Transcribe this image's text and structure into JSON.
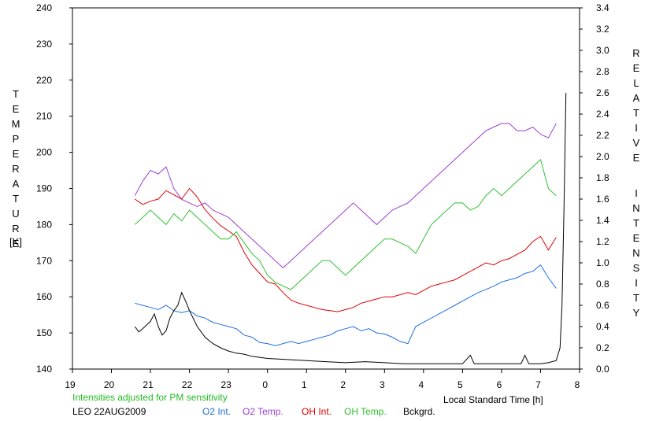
{
  "chart_data": {
    "type": "line",
    "left_axis": {
      "title_letters": "TEMPERATURE",
      "units": "[K]",
      "ylim": [
        140,
        240
      ],
      "ticks": [
        "140",
        "150",
        "160",
        "170",
        "180",
        "190",
        "200",
        "210",
        "220",
        "230",
        "240"
      ]
    },
    "right_axis": {
      "title_word1": "RELATIVE",
      "title_word2": "INTENSITY",
      "ylim": [
        0.0,
        3.4
      ],
      "ticks": [
        "0.0",
        "0.2",
        "0.4",
        "0.6",
        "0.8",
        "1.0",
        "1.2",
        "1.4",
        "1.6",
        "1.8",
        "2.0",
        "2.2",
        "2.4",
        "2.6",
        "2.8",
        "3.0",
        "3.2",
        "3.4"
      ]
    },
    "x_axis": {
      "label": "Local Standard Time [h]",
      "ticks": [
        "19",
        "20",
        "21",
        "22",
        "23",
        "0",
        "1",
        "2",
        "3",
        "4",
        "5",
        "6",
        "7",
        "8"
      ]
    },
    "note": "Intensities adjusted for PM sensitivity",
    "station": "LEO 22AUG2009",
    "colors": {
      "o2_int": "#1f6fe0",
      "o2_temp": "#9b3fd6",
      "oh_int": "#e00000",
      "oh_temp": "#2fbf2f",
      "bckgrd": "#000000",
      "note": "#22bb22"
    },
    "series": [
      {
        "name": "O2 Int.",
        "axis": "right",
        "color": "#1f6fe0",
        "x": [
          20.6,
          20.8,
          21.0,
          21.2,
          21.4,
          21.6,
          21.8,
          22.0,
          22.2,
          22.4,
          22.6,
          22.8,
          23.0,
          23.2,
          23.4,
          23.6,
          23.8,
          24.0,
          24.2,
          24.4,
          24.6,
          24.8,
          25.0,
          25.2,
          25.4,
          25.6,
          25.8,
          26.0,
          26.2,
          26.4,
          26.6,
          26.8,
          27.0,
          27.2,
          27.4,
          27.6,
          27.8,
          28.0,
          28.2,
          28.4,
          28.6,
          28.8,
          29.0,
          29.2,
          29.4,
          29.6,
          29.8,
          30.0,
          30.2,
          30.4,
          30.6,
          30.8,
          31.0,
          31.2,
          31.4
        ],
        "values": [
          0.62,
          0.6,
          0.58,
          0.56,
          0.6,
          0.55,
          0.53,
          0.55,
          0.5,
          0.48,
          0.44,
          0.42,
          0.4,
          0.38,
          0.32,
          0.3,
          0.25,
          0.24,
          0.22,
          0.24,
          0.26,
          0.24,
          0.26,
          0.28,
          0.3,
          0.32,
          0.36,
          0.38,
          0.4,
          0.36,
          0.38,
          0.34,
          0.33,
          0.3,
          0.26,
          0.24,
          0.4,
          0.44,
          0.48,
          0.52,
          0.56,
          0.6,
          0.64,
          0.68,
          0.72,
          0.75,
          0.78,
          0.82,
          0.84,
          0.86,
          0.9,
          0.92,
          0.98,
          0.86,
          0.76
        ]
      },
      {
        "name": "O2 Temp.",
        "axis": "left",
        "color": "#9b3fd6",
        "x": [
          20.6,
          20.8,
          21.0,
          21.2,
          21.4,
          21.6,
          21.8,
          22.0,
          22.2,
          22.4,
          22.6,
          22.8,
          23.0,
          23.2,
          23.4,
          23.6,
          23.8,
          24.0,
          24.2,
          24.4,
          24.6,
          24.8,
          25.0,
          25.2,
          25.4,
          25.6,
          25.8,
          26.0,
          26.2,
          26.4,
          26.6,
          26.8,
          27.0,
          27.2,
          27.4,
          27.6,
          27.8,
          28.0,
          28.2,
          28.4,
          28.6,
          28.8,
          29.0,
          29.2,
          29.4,
          29.6,
          29.8,
          30.0,
          30.2,
          30.4,
          30.6,
          30.8,
          31.0,
          31.2,
          31.4
        ],
        "values": [
          188,
          192,
          195,
          194,
          196,
          190,
          187,
          186,
          185,
          186,
          184,
          183,
          182,
          180,
          178,
          176,
          174,
          172,
          170,
          168,
          170,
          172,
          174,
          176,
          178,
          180,
          182,
          184,
          186,
          184,
          182,
          180,
          182,
          184,
          185,
          186,
          188,
          190,
          192,
          194,
          196,
          198,
          200,
          202,
          204,
          206,
          207,
          208,
          208,
          206,
          206,
          207,
          205,
          204,
          208
        ]
      },
      {
        "name": "OH Int.",
        "axis": "right",
        "color": "#e00000",
        "x": [
          20.6,
          20.8,
          21.0,
          21.2,
          21.4,
          21.6,
          21.8,
          22.0,
          22.2,
          22.4,
          22.6,
          22.8,
          23.0,
          23.2,
          23.4,
          23.6,
          23.8,
          24.0,
          24.2,
          24.4,
          24.6,
          24.8,
          25.0,
          25.2,
          25.4,
          25.6,
          25.8,
          26.0,
          26.2,
          26.4,
          26.6,
          26.8,
          27.0,
          27.2,
          27.4,
          27.6,
          27.8,
          28.0,
          28.2,
          28.4,
          28.6,
          28.8,
          29.0,
          29.2,
          29.4,
          29.6,
          29.8,
          30.0,
          30.2,
          30.4,
          30.6,
          30.8,
          31.0,
          31.2,
          31.4
        ],
        "values": [
          1.6,
          1.55,
          1.58,
          1.6,
          1.68,
          1.64,
          1.6,
          1.7,
          1.62,
          1.5,
          1.42,
          1.35,
          1.3,
          1.25,
          1.1,
          0.98,
          0.9,
          0.82,
          0.8,
          0.72,
          0.65,
          0.62,
          0.6,
          0.58,
          0.56,
          0.55,
          0.54,
          0.56,
          0.58,
          0.62,
          0.64,
          0.66,
          0.68,
          0.68,
          0.7,
          0.72,
          0.7,
          0.74,
          0.78,
          0.8,
          0.82,
          0.84,
          0.88,
          0.92,
          0.96,
          1.0,
          0.98,
          1.02,
          1.04,
          1.08,
          1.12,
          1.2,
          1.25,
          1.12,
          1.24
        ]
      },
      {
        "name": "OH Temp.",
        "axis": "left",
        "color": "#2fbf2f",
        "x": [
          20.6,
          20.8,
          21.0,
          21.2,
          21.4,
          21.6,
          21.8,
          22.0,
          22.2,
          22.4,
          22.6,
          22.8,
          23.0,
          23.2,
          23.4,
          23.6,
          23.8,
          24.0,
          24.2,
          24.4,
          24.6,
          24.8,
          25.0,
          25.2,
          25.4,
          25.6,
          25.8,
          26.0,
          26.2,
          26.4,
          26.6,
          26.8,
          27.0,
          27.2,
          27.4,
          27.6,
          27.8,
          28.0,
          28.2,
          28.4,
          28.6,
          28.8,
          29.0,
          29.2,
          29.4,
          29.6,
          29.8,
          30.0,
          30.2,
          30.4,
          30.6,
          30.8,
          31.0,
          31.2,
          31.4
        ],
        "values": [
          180,
          182,
          184,
          182,
          180,
          183,
          181,
          184,
          182,
          180,
          178,
          176,
          176,
          178,
          175,
          172,
          170,
          166,
          164,
          163,
          162,
          164,
          166,
          168,
          170,
          170,
          168,
          166,
          168,
          170,
          172,
          174,
          176,
          176,
          175,
          174,
          172,
          176,
          180,
          182,
          184,
          186,
          186,
          184,
          185,
          188,
          190,
          188,
          190,
          192,
          194,
          196,
          198,
          190,
          188
        ]
      },
      {
        "name": "Bckgrd.",
        "axis": "right",
        "color": "#000000",
        "x": [
          20.6,
          20.7,
          20.8,
          21.0,
          21.1,
          21.2,
          21.3,
          21.4,
          21.5,
          21.6,
          21.7,
          21.8,
          21.9,
          22.0,
          22.2,
          22.4,
          22.6,
          22.8,
          23.0,
          23.2,
          23.4,
          23.6,
          23.8,
          24.0,
          24.5,
          25.0,
          25.5,
          26.0,
          26.5,
          27.0,
          27.5,
          28.0,
          28.5,
          29.0,
          29.2,
          29.3,
          29.5,
          30.0,
          30.5,
          30.6,
          30.7,
          31.0,
          31.2,
          31.4,
          31.5,
          31.55,
          31.6,
          31.65
        ],
        "values": [
          0.4,
          0.35,
          0.38,
          0.45,
          0.52,
          0.4,
          0.32,
          0.36,
          0.48,
          0.55,
          0.6,
          0.72,
          0.64,
          0.55,
          0.4,
          0.3,
          0.24,
          0.2,
          0.17,
          0.15,
          0.14,
          0.12,
          0.11,
          0.1,
          0.09,
          0.08,
          0.07,
          0.06,
          0.07,
          0.06,
          0.05,
          0.05,
          0.05,
          0.05,
          0.13,
          0.05,
          0.05,
          0.05,
          0.05,
          0.13,
          0.05,
          0.05,
          0.06,
          0.08,
          0.2,
          0.6,
          1.5,
          2.6
        ]
      }
    ]
  }
}
